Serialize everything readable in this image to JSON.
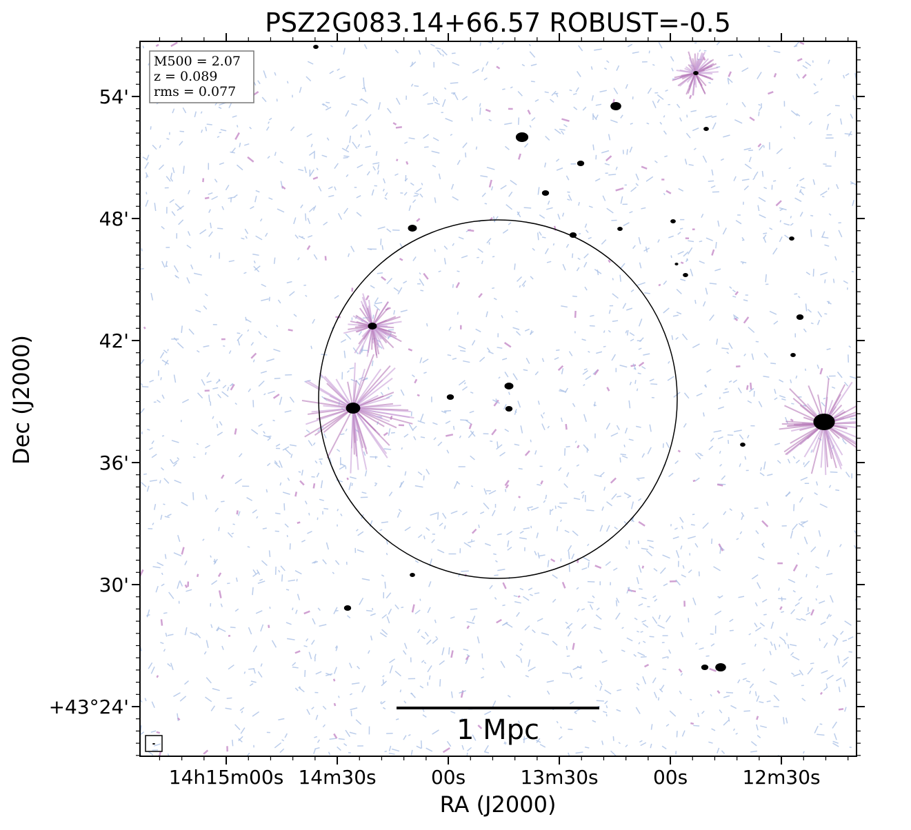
{
  "chart_data": {
    "type": "image",
    "title": "PSZ2G083.14+66.57 ROBUST=-0.5",
    "xlabel": "RA (J2000)",
    "ylabel": "Dec (J2000)",
    "xlim": [
      51323.3,
      51129.7
    ],
    "xticks": [
      {
        "value": 51300,
        "label": "14h15m00s"
      },
      {
        "value": 51270,
        "label": "14m30s"
      },
      {
        "value": 51240,
        "label": "00s"
      },
      {
        "value": 51210,
        "label": "13m30s"
      },
      {
        "value": 51180,
        "label": "00s"
      },
      {
        "value": 51150,
        "label": "12m30s"
      }
    ],
    "ylim": [
      21.56,
      56.71
    ],
    "yticks": [
      {
        "value": 54,
        "label": "54'"
      },
      {
        "value": 48,
        "label": "48'"
      },
      {
        "value": 42,
        "label": "42'"
      },
      {
        "value": 36,
        "label": "36'"
      },
      {
        "value": 30,
        "label": "30'"
      },
      {
        "value": 24,
        "label": "+43°24'"
      }
    ],
    "annotations": [
      "M500 = 2.07",
      "z = 0.089",
      "rms = 0.077"
    ],
    "scale_bar_label": "1 Mpc"
  }
}
